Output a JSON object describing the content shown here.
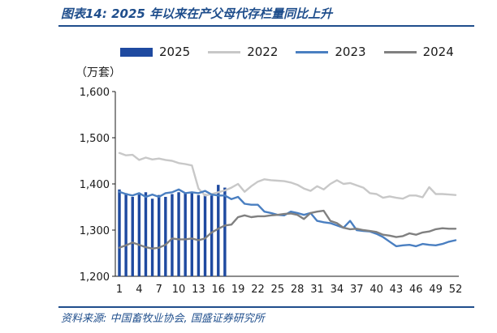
{
  "title": "图表14:  2025 年以来在产父母代存栏量同比上升",
  "source": "资料来源:  中国畜牧业协会,  国盛证券研究所",
  "chart_data": {
    "type": "bar",
    "unit_label": "（万套）",
    "ylim": [
      1200,
      1600
    ],
    "yticks": [
      1200,
      1300,
      1400,
      1500,
      1600
    ],
    "ytick_labels": [
      "1,200",
      "1,300",
      "1,400",
      "1,500",
      "1,600"
    ],
    "xlim": [
      1,
      52
    ],
    "xticks": [
      1,
      4,
      7,
      10,
      13,
      16,
      19,
      22,
      25,
      28,
      31,
      34,
      37,
      40,
      43,
      46,
      49,
      52
    ],
    "legend_position": "top",
    "grid": false,
    "series": [
      {
        "name": "2025",
        "kind": "bar",
        "color": "#1f4aa0",
        "values": [
          1388,
          1380,
          1372,
          1377,
          1382,
          1368,
          1376,
          1372,
          1378,
          1382,
          1380,
          1383,
          1376,
          1378,
          1375,
          1398,
          1392
        ]
      },
      {
        "name": "2022",
        "kind": "line",
        "color": "#c8c8c8",
        "values": [
          1467,
          1462,
          1463,
          1452,
          1457,
          1453,
          1455,
          1452,
          1450,
          1445,
          1443,
          1440,
          1390,
          1375,
          1378,
          1382,
          1386,
          1392,
          1400,
          1383,
          1395,
          1405,
          1410,
          1408,
          1407,
          1406,
          1403,
          1398,
          1390,
          1385,
          1395,
          1388,
          1400,
          1408,
          1400,
          1402,
          1397,
          1392,
          1380,
          1378,
          1370,
          1373,
          1370,
          1368,
          1375,
          1375,
          1371,
          1393,
          1378,
          1378,
          1377,
          1376
        ]
      },
      {
        "name": "2023",
        "kind": "line",
        "color": "#4a7fc1",
        "values": [
          1383,
          1378,
          1375,
          1380,
          1372,
          1377,
          1372,
          1380,
          1382,
          1388,
          1380,
          1382,
          1380,
          1385,
          1377,
          1375,
          1375,
          1367,
          1372,
          1357,
          1355,
          1355,
          1340,
          1337,
          1333,
          1332,
          1340,
          1337,
          1333,
          1337,
          1320,
          1317,
          1315,
          1310,
          1305,
          1320,
          1300,
          1298,
          1297,
          1292,
          1285,
          1275,
          1265,
          1267,
          1268,
          1265,
          1270,
          1268,
          1267,
          1270,
          1275,
          1278
        ]
      },
      {
        "name": "2024",
        "kind": "line",
        "color": "#808080",
        "values": [
          1262,
          1267,
          1273,
          1268,
          1263,
          1260,
          1262,
          1268,
          1282,
          1280,
          1280,
          1282,
          1278,
          1282,
          1295,
          1303,
          1310,
          1312,
          1328,
          1332,
          1328,
          1330,
          1330,
          1332,
          1333,
          1335,
          1336,
          1333,
          1324,
          1337,
          1340,
          1342,
          1320,
          1315,
          1305,
          1302,
          1303,
          1300,
          1298,
          1296,
          1290,
          1288,
          1285,
          1287,
          1293,
          1290,
          1295,
          1297,
          1302,
          1304,
          1303,
          1303
        ]
      }
    ]
  }
}
